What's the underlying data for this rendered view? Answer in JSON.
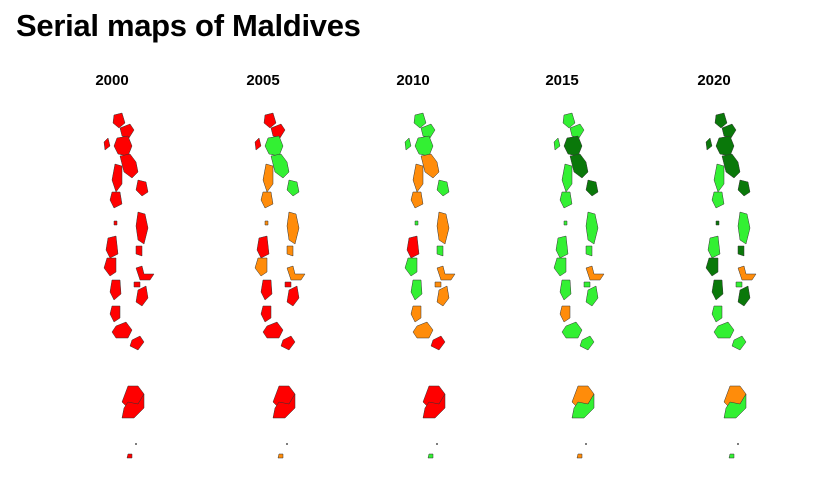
{
  "title": "Serial maps of Maldives",
  "colors": {
    "red": "#ff0000",
    "orange": "#ff8c0a",
    "lightgreen": "#33f033",
    "darkgreen": "#0a780a"
  },
  "maps": [
    {
      "year": "2000",
      "regions": [
        "red",
        "red",
        "red",
        "red",
        "red",
        "red",
        "red",
        "red",
        "red",
        "red",
        "red",
        "red",
        "red",
        "red",
        "red",
        "red",
        "red",
        "red",
        "red",
        "red",
        "red",
        "red",
        "red"
      ]
    },
    {
      "year": "2005",
      "regions": [
        "red",
        "red",
        "red",
        "lightgreen",
        "lightgreen",
        "orange",
        "orange",
        "lightgreen",
        "orange",
        "orange",
        "red",
        "orange",
        "orange",
        "red",
        "orange",
        "red",
        "red",
        "red",
        "red",
        "red",
        "red",
        "red",
        "orange"
      ]
    },
    {
      "year": "2010",
      "regions": [
        "lightgreen",
        "lightgreen",
        "lightgreen",
        "lightgreen",
        "orange",
        "orange",
        "orange",
        "lightgreen",
        "orange",
        "lightgreen",
        "red",
        "lightgreen",
        "lightgreen",
        "lightgreen",
        "orange",
        "orange",
        "orange",
        "orange",
        "orange",
        "red",
        "red",
        "red",
        "lightgreen"
      ]
    },
    {
      "year": "2015",
      "regions": [
        "lightgreen",
        "lightgreen",
        "lightgreen",
        "darkgreen",
        "darkgreen",
        "lightgreen",
        "lightgreen",
        "darkgreen",
        "lightgreen",
        "lightgreen",
        "lightgreen",
        "lightgreen",
        "lightgreen",
        "lightgreen",
        "orange",
        "lightgreen",
        "lightgreen",
        "orange",
        "lightgreen",
        "lightgreen",
        "orange",
        "lightgreen",
        "orange"
      ]
    },
    {
      "year": "2020",
      "regions": [
        "darkgreen",
        "darkgreen",
        "darkgreen",
        "darkgreen",
        "darkgreen",
        "lightgreen",
        "lightgreen",
        "darkgreen",
        "lightgreen",
        "darkgreen",
        "lightgreen",
        "darkgreen",
        "darkgreen",
        "darkgreen",
        "orange",
        "lightgreen",
        "darkgreen",
        "lightgreen",
        "lightgreen",
        "lightgreen",
        "orange",
        "lightgreen",
        "lightgreen"
      ]
    }
  ]
}
